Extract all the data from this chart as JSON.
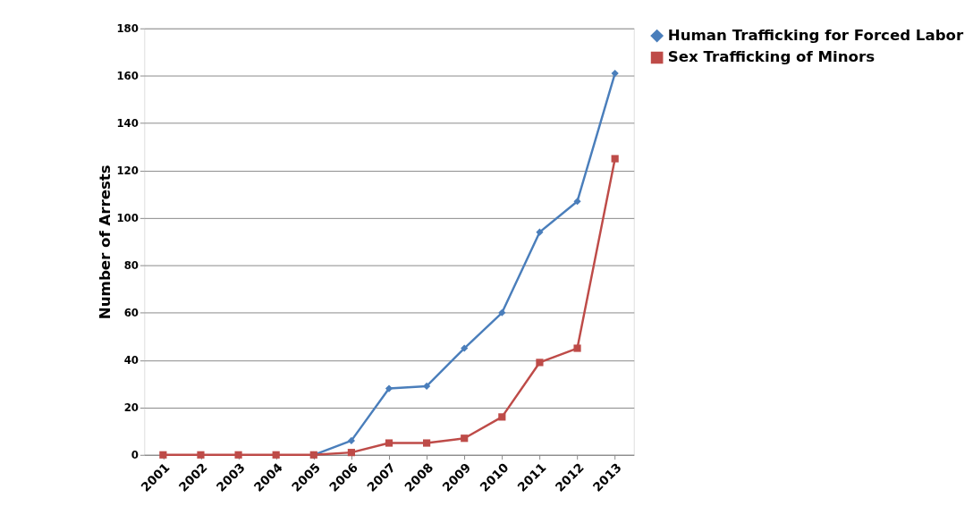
{
  "chart_data": {
    "type": "line",
    "ylabel": "Number of Arrests",
    "categories": [
      "2001",
      "2002",
      "2003",
      "2004",
      "2005",
      "2006",
      "2007",
      "2008",
      "2009",
      "2010",
      "2011",
      "2012",
      "2013"
    ],
    "series": [
      {
        "name": "Human Trafficking for Forced Labor",
        "color": "#4a7ebb",
        "marker": "diamond",
        "values": [
          null,
          null,
          null,
          null,
          0,
          6,
          28,
          29,
          45,
          60,
          94,
          107,
          161
        ]
      },
      {
        "name": "Sex Trafficking of Minors",
        "color": "#be4b48",
        "marker": "square",
        "values": [
          0,
          0,
          0,
          0,
          0,
          1,
          5,
          5,
          7,
          16,
          39,
          45,
          125
        ]
      }
    ],
    "ylim": [
      0,
      180
    ],
    "yticks": [
      0,
      20,
      40,
      60,
      80,
      100,
      120,
      140,
      160,
      180
    ],
    "grid": "y",
    "legend": "right"
  }
}
